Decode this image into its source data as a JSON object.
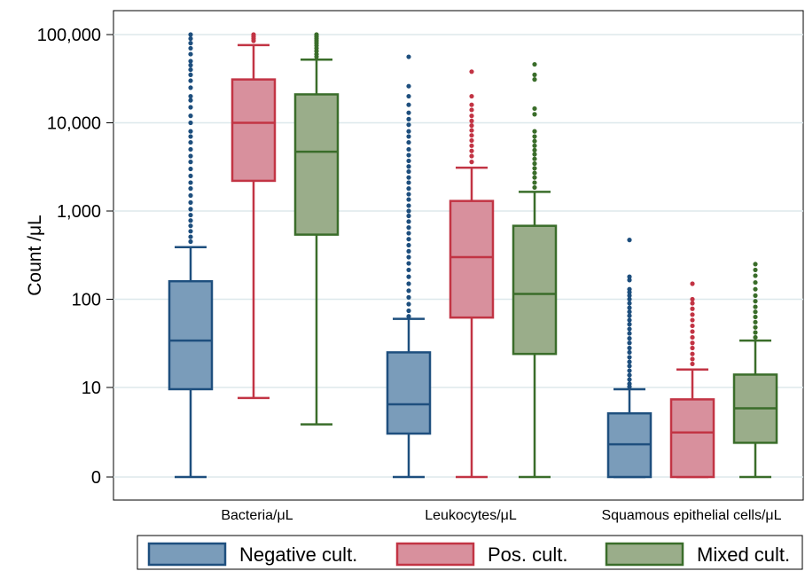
{
  "chart_data": {
    "type": "box",
    "ylabel": "Count /μL",
    "y_scale": "log (0 shown at bottom)",
    "y_ticks": [
      {
        "value": 0,
        "label": "0"
      },
      {
        "value": 10,
        "label": "10"
      },
      {
        "value": 100,
        "label": "100"
      },
      {
        "value": 1000,
        "label": "1,000"
      },
      {
        "value": 10000,
        "label": "10,000"
      },
      {
        "value": 100000,
        "label": "100,000"
      }
    ],
    "grid": true,
    "legend_position": "bottom",
    "categories": [
      "Bacteria/μL",
      "Leukocytes/μL",
      "Squamous epithelial cells/μL"
    ],
    "series": [
      {
        "name": "Negative cult.",
        "fill": "#7a9cba",
        "stroke": "#1e4f7e",
        "boxes": [
          {
            "min": 0,
            "q1": 9.5,
            "median": 34,
            "q3": 160,
            "max": 390,
            "outliers": [
              100000,
              90000,
              80000,
              70000,
              60000,
              50000,
              45000,
              40000,
              35000,
              30000,
              25000,
              20000,
              18000,
              15000,
              12000,
              10000,
              8000,
              7000,
              6000,
              5000,
              4200,
              3600,
              3000,
              2500,
              2100,
              1800,
              1500,
              1250,
              1050,
              900,
              780,
              680,
              590,
              510,
              450
            ]
          },
          {
            "min": 0,
            "q1": 2.2,
            "median": 6,
            "q3": 25,
            "max": 60,
            "outliers": [
              56000,
              26000,
              20000,
              16000,
              13000,
              11000,
              9500,
              8000,
              7000,
              6000,
              5000,
              4300,
              3700,
              3200,
              2800,
              2400,
              2100,
              1800,
              1550,
              1350,
              1150,
              1000,
              880,
              760,
              650,
              560,
              480,
              410,
              350,
              300,
              255,
              215,
              180,
              150,
              125,
              105,
              88,
              74,
              64
            ]
          },
          {
            "min": 0,
            "q1": 0,
            "median": 1.4,
            "q3": 4.5,
            "max": 9.5,
            "outliers": [
              470,
              180,
              165,
              130,
              120,
              110,
              100,
              90,
              80,
              72,
              65,
              58,
              52,
              46,
              41,
              36,
              32,
              28,
              25,
              22,
              19.5,
              17.5,
              15.5,
              13.8,
              12.3,
              11,
              10.2
            ]
          }
        ]
      },
      {
        "name": "Pos. cult.",
        "fill": "#d8909d",
        "stroke": "#c23444",
        "boxes": [
          {
            "min": 7.3,
            "q1": 2200,
            "median": 10000,
            "q3": 31000,
            "max": 76000,
            "outliers": [
              100000,
              95000,
              90000,
              85000
            ]
          },
          {
            "min": 0,
            "q1": 62,
            "median": 300,
            "q3": 1300,
            "max": 3100,
            "outliers": [
              38000,
              20000,
              16000,
              14000,
              12000,
              10500,
              9300,
              8200,
              7200,
              6300,
              5500,
              4800,
              4200,
              3600
            ]
          },
          {
            "min": 0,
            "q1": 0,
            "median": 2.3,
            "q3": 7,
            "max": 16,
            "outliers": [
              150,
              100,
              90,
              78,
              67,
              58,
              50,
              43,
              37,
              32,
              28,
              24,
              21,
              18.5
            ]
          }
        ]
      },
      {
        "name": "Mixed cult.",
        "fill": "#9aad8a",
        "stroke": "#3a6d2a",
        "boxes": [
          {
            "min": 3.1,
            "q1": 540,
            "median": 4700,
            "q3": 21000,
            "max": 52000,
            "outliers": [
              100000,
              95000,
              90000,
              85000,
              80000,
              75000,
              70000,
              65000,
              60000,
              56000
            ]
          },
          {
            "min": 0,
            "q1": 24,
            "median": 115,
            "q3": 680,
            "max": 1650,
            "outliers": [
              46000,
              35000,
              31000,
              14500,
              12500,
              8000,
              7000,
              6200,
              5500,
              4900,
              4400,
              3900,
              3450,
              3050,
              2700,
              2400,
              2100,
              1850
            ]
          },
          {
            "min": 0,
            "q1": 1.5,
            "median": 5.3,
            "q3": 14,
            "max": 34,
            "outliers": [
              250,
              215,
              185,
              155,
              130,
              110,
              95,
              82,
              72,
              63,
              55,
              48,
              42,
              37
            ]
          }
        ]
      }
    ]
  }
}
